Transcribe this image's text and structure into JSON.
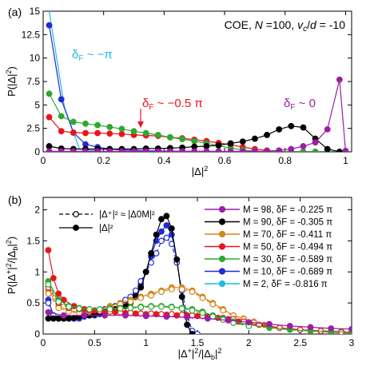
{
  "chart_data": [
    {
      "type": "line",
      "panel_label": "(a)",
      "info_text": "COE, N =100,  vc/d = -10",
      "xlabel": "|Δ|²",
      "ylabel": "P(|Δ|²)",
      "xlim": [
        0,
        1.02
      ],
      "ylim": [
        0,
        15
      ],
      "xticks": [
        0,
        0.2,
        0.4,
        0.6,
        0.8,
        1
      ],
      "xtick_labels": [
        "0",
        "0.2",
        "0.4",
        "0.6",
        "0.8",
        "1"
      ],
      "yticks": [
        0,
        2.5,
        5,
        7.5,
        10,
        12.5,
        15
      ],
      "ytick_labels": [
        "0",
        "2.5",
        "5",
        "7.5",
        "10",
        "12.5",
        "15"
      ],
      "annotations": [
        {
          "text": "δF ~ −π",
          "color": "#1fb9e6"
        },
        {
          "text": "δF ~ −0.5 π",
          "color": "#e8161c"
        },
        {
          "text": "δF ~ 0",
          "color": "#9b1ea6"
        }
      ],
      "series": [
        {
          "color": "#1fb9e6",
          "markers": false,
          "x": [
            0.02,
            0.07,
            0.12,
            0.2,
            0.3,
            0.4,
            0.5,
            0.6,
            0.7,
            0.8,
            0.9,
            1.0
          ],
          "y": [
            15,
            4.8,
            0.3,
            0.05,
            0.02,
            0.01,
            0.01,
            0.01,
            0.01,
            0.01,
            0.01,
            0.01
          ]
        },
        {
          "color": "#1f2bd6",
          "markers": true,
          "x": [
            0.02,
            0.06,
            0.1,
            0.14,
            0.18,
            0.22,
            0.26,
            0.3,
            0.34,
            0.38,
            0.42,
            0.46,
            0.5,
            0.54,
            0.58,
            0.62,
            0.66,
            0.7,
            0.74,
            0.78,
            0.82,
            0.86,
            0.9,
            0.94,
            0.98,
            1.0
          ],
          "y": [
            13.5,
            5.6,
            2.05,
            0.8,
            0.5,
            0.3,
            0.2,
            0.15,
            0.12,
            0.1,
            0.08,
            0.06,
            0.05,
            0.04,
            0.03,
            0.03,
            0.02,
            0.02,
            0.02,
            0.01,
            0.01,
            0.01,
            0.01,
            0.01,
            0.0,
            0.0
          ]
        },
        {
          "color": "#e8161c",
          "markers": true,
          "x": [
            0.02,
            0.06,
            0.1,
            0.14,
            0.18,
            0.22,
            0.26,
            0.3,
            0.34,
            0.38,
            0.42,
            0.46,
            0.5,
            0.54,
            0.58,
            0.62,
            0.66,
            0.7,
            0.74,
            0.78,
            0.82,
            0.86,
            0.9,
            0.94,
            0.98,
            1.0
          ],
          "y": [
            3.7,
            2.2,
            2.05,
            2.0,
            2.0,
            1.95,
            1.9,
            1.8,
            1.75,
            1.7,
            1.55,
            1.45,
            1.3,
            1.15,
            0.95,
            0.75,
            0.5,
            0.3,
            0.15,
            0.05,
            0.0,
            0.0,
            0.0,
            0.0,
            0.0,
            0.0
          ]
        },
        {
          "color": "#2fa82f",
          "markers": true,
          "x": [
            0.02,
            0.06,
            0.1,
            0.14,
            0.18,
            0.22,
            0.26,
            0.3,
            0.34,
            0.38,
            0.42,
            0.46,
            0.5,
            0.54,
            0.58,
            0.62,
            0.66,
            0.7,
            0.74,
            0.78,
            0.82,
            0.86,
            0.9,
            0.94,
            0.98,
            1.0
          ],
          "y": [
            6.2,
            3.8,
            3.2,
            3.0,
            2.85,
            2.65,
            2.45,
            2.2,
            2.0,
            1.8,
            1.55,
            1.35,
            1.15,
            0.9,
            0.65,
            0.4,
            0.2,
            0.08,
            0.02,
            0.0,
            0.0,
            0.0,
            0.0,
            0.0,
            0.0,
            0.0
          ]
        },
        {
          "color": "#000000",
          "markers": true,
          "x": [
            0.02,
            0.06,
            0.1,
            0.14,
            0.18,
            0.22,
            0.26,
            0.3,
            0.34,
            0.38,
            0.42,
            0.46,
            0.5,
            0.54,
            0.58,
            0.62,
            0.66,
            0.7,
            0.74,
            0.78,
            0.82,
            0.86,
            0.9,
            0.94,
            0.98,
            1.0
          ],
          "y": [
            0.6,
            0.35,
            0.3,
            0.3,
            0.3,
            0.3,
            0.3,
            0.3,
            0.35,
            0.35,
            0.4,
            0.45,
            0.55,
            0.6,
            0.7,
            0.9,
            1.1,
            1.4,
            1.8,
            2.4,
            2.75,
            2.6,
            1.4,
            0.3,
            0.0,
            0.0
          ]
        },
        {
          "color": "#9b1ea6",
          "markers": true,
          "x": [
            0.02,
            0.06,
            0.1,
            0.14,
            0.18,
            0.22,
            0.26,
            0.3,
            0.34,
            0.38,
            0.42,
            0.46,
            0.5,
            0.54,
            0.58,
            0.62,
            0.66,
            0.7,
            0.74,
            0.78,
            0.82,
            0.86,
            0.9,
            0.94,
            0.98,
            1.0
          ],
          "y": [
            0.05,
            0.05,
            0.05,
            0.05,
            0.05,
            0.05,
            0.05,
            0.05,
            0.05,
            0.05,
            0.05,
            0.05,
            0.05,
            0.05,
            0.05,
            0.05,
            0.05,
            0.06,
            0.08,
            0.15,
            0.3,
            0.6,
            1.0,
            2.4,
            7.7,
            0.1
          ]
        }
      ]
    },
    {
      "type": "line",
      "panel_label": "(b)",
      "xlabel": "|Δ⁺|²/|Δb|²",
      "ylabel": "P(|Δ⁺|²/|Δb|²)",
      "xlim": [
        0,
        3
      ],
      "ylim": [
        0,
        2.2
      ],
      "xticks": [
        0,
        0.5,
        1,
        1.5,
        2,
        2.5,
        3
      ],
      "xtick_labels": [
        "0",
        "0.5",
        "1",
        "1.5",
        "2",
        "2.5",
        "3"
      ],
      "yticks": [
        0,
        0.5,
        1,
        1.5,
        2
      ],
      "ytick_labels": [
        "0",
        "0.5",
        "1",
        "1.5",
        "2"
      ],
      "style_legend": [
        {
          "label": "|Δ⁺|² ≈ |Δ0M|²",
          "style": "dashed-open"
        },
        {
          "label": "|Δ|²",
          "style": "solid-filled"
        }
      ],
      "legend": [
        {
          "label": "M = 98, δF = -0.225 π",
          "color": "#9b1ea6"
        },
        {
          "label": "M = 90, δF = -0.305 π",
          "color": "#000000"
        },
        {
          "label": "M = 70, δF = -0.411 π",
          "color": "#d4861b"
        },
        {
          "label": "M = 50, δF = -0.494 π",
          "color": "#e8161c"
        },
        {
          "label": "M = 30, δF = -0.589 π",
          "color": "#2fa82f"
        },
        {
          "label": "M = 10, δF = -0.689 π",
          "color": "#1f2bd6"
        },
        {
          "label": "M =   2, δF = -0.816 π",
          "color": "#1fb9e6"
        }
      ],
      "series": [
        {
          "color": "#1f2bd6",
          "style": "solid-filled",
          "x": [
            0.05,
            0.1,
            0.15,
            0.2,
            0.25,
            0.3,
            0.35,
            0.4,
            0.45,
            0.5,
            0.55,
            0.6,
            0.65,
            0.7,
            0.75,
            0.8,
            0.85,
            0.9,
            0.95,
            1.0,
            1.05,
            1.1,
            1.15,
            1.2,
            1.25,
            1.3,
            1.35,
            1.4,
            1.45
          ],
          "y": [
            0.55,
            0.3,
            0.25,
            0.25,
            0.25,
            0.25,
            0.25,
            0.28,
            0.3,
            0.3,
            0.32,
            0.34,
            0.38,
            0.4,
            0.45,
            0.5,
            0.55,
            0.65,
            0.8,
            1.0,
            1.25,
            1.5,
            1.65,
            1.75,
            1.6,
            1.2,
            0.6,
            0.15,
            0.0
          ]
        },
        {
          "color": "#1f2bd6",
          "style": "dashed-open",
          "x": [
            0.05,
            0.1,
            0.15,
            0.2,
            0.25,
            0.3,
            0.35,
            0.4,
            0.45,
            0.5,
            0.55,
            0.6,
            0.65,
            0.7,
            0.75,
            0.8,
            0.85,
            0.9,
            0.95,
            1.0,
            1.05,
            1.1,
            1.15,
            1.2,
            1.25,
            1.3,
            1.35,
            1.4,
            1.45,
            1.5
          ],
          "y": [
            0.5,
            0.3,
            0.25,
            0.25,
            0.25,
            0.25,
            0.28,
            0.3,
            0.32,
            0.35,
            0.38,
            0.4,
            0.42,
            0.45,
            0.5,
            0.55,
            0.6,
            0.7,
            0.85,
            1.0,
            1.15,
            1.3,
            1.5,
            1.55,
            1.45,
            1.15,
            0.7,
            0.3,
            0.05,
            0.0
          ]
        },
        {
          "color": "#000000",
          "style": "solid-filled",
          "x": [
            0.05,
            0.1,
            0.15,
            0.2,
            0.25,
            0.3,
            0.35,
            0.4,
            0.45,
            0.5,
            0.55,
            0.6,
            0.65,
            0.7,
            0.75,
            0.8,
            0.85,
            0.9,
            0.95,
            1.0,
            1.05,
            1.1,
            1.15,
            1.2,
            1.25,
            1.3,
            1.35,
            1.4,
            1.45
          ],
          "y": [
            0.25,
            0.25,
            0.25,
            0.25,
            0.25,
            0.26,
            0.28,
            0.3,
            0.3,
            0.32,
            0.34,
            0.35,
            0.38,
            0.4,
            0.42,
            0.45,
            0.5,
            0.6,
            0.75,
            1.0,
            1.3,
            1.6,
            1.85,
            1.9,
            1.7,
            1.2,
            0.6,
            0.15,
            0.0
          ]
        },
        {
          "color": "#d4861b",
          "style": "solid-filled",
          "x": [
            0.05,
            0.15,
            0.25,
            0.35,
            0.45,
            0.55,
            0.65,
            0.75,
            0.85,
            0.95,
            1.05,
            1.15,
            1.25,
            1.35,
            1.45,
            1.55,
            1.65,
            1.75,
            1.85,
            1.95,
            2.05,
            2.15,
            2.3,
            2.5,
            2.7,
            2.9
          ],
          "y": [
            0.7,
            0.45,
            0.38,
            0.35,
            0.37,
            0.4,
            0.45,
            0.5,
            0.55,
            0.6,
            0.65,
            0.7,
            0.75,
            0.75,
            0.7,
            0.6,
            0.5,
            0.4,
            0.3,
            0.25,
            0.2,
            0.15,
            0.1,
            0.07,
            0.05,
            0.04
          ]
        },
        {
          "color": "#d4861b",
          "style": "dashed-open",
          "x": [
            0.05,
            0.15,
            0.25,
            0.35,
            0.45,
            0.55,
            0.65,
            0.75,
            0.85,
            0.95,
            1.05,
            1.15,
            1.25,
            1.35,
            1.45,
            1.55,
            1.65,
            1.75,
            1.85,
            1.95,
            2.05,
            2.2,
            2.4,
            2.6,
            2.8,
            3.0
          ],
          "y": [
            0.65,
            0.42,
            0.36,
            0.34,
            0.36,
            0.38,
            0.42,
            0.48,
            0.52,
            0.58,
            0.62,
            0.68,
            0.72,
            0.72,
            0.68,
            0.58,
            0.48,
            0.38,
            0.3,
            0.24,
            0.18,
            0.12,
            0.08,
            0.06,
            0.05,
            0.04
          ]
        },
        {
          "color": "#e8161c",
          "style": "solid-filled",
          "x": [
            0.05,
            0.1,
            0.15,
            0.2,
            0.3,
            0.4,
            0.5,
            0.6,
            0.7,
            0.8,
            0.9,
            1.0,
            1.1,
            1.2,
            1.3,
            1.4,
            1.5,
            1.6,
            1.7,
            1.8,
            1.9,
            2.0,
            2.2,
            2.4,
            2.6,
            2.8,
            3.0
          ],
          "y": [
            1.35,
            0.9,
            0.65,
            0.55,
            0.45,
            0.4,
            0.38,
            0.36,
            0.35,
            0.34,
            0.33,
            0.32,
            0.32,
            0.31,
            0.3,
            0.3,
            0.29,
            0.28,
            0.26,
            0.24,
            0.2,
            0.17,
            0.12,
            0.08,
            0.05,
            0.03,
            0.02
          ]
        },
        {
          "color": "#e8161c",
          "style": "dashed-open",
          "x": [
            0.05,
            0.15,
            0.25,
            0.35,
            0.45,
            0.55,
            0.65,
            0.75,
            0.85,
            0.95,
            1.05,
            1.15,
            1.25,
            1.35,
            1.45,
            1.55,
            1.65,
            1.75,
            1.85,
            1.95,
            2.1,
            2.3,
            2.5,
            2.7,
            2.9
          ],
          "y": [
            0.75,
            0.5,
            0.42,
            0.4,
            0.38,
            0.37,
            0.36,
            0.35,
            0.34,
            0.33,
            0.33,
            0.32,
            0.32,
            0.31,
            0.3,
            0.29,
            0.28,
            0.26,
            0.24,
            0.2,
            0.15,
            0.1,
            0.07,
            0.05,
            0.03
          ]
        },
        {
          "color": "#2fa82f",
          "style": "solid-filled",
          "x": [
            0.05,
            0.15,
            0.25,
            0.35,
            0.45,
            0.55,
            0.65,
            0.75,
            0.85,
            0.95,
            1.05,
            1.15,
            1.25,
            1.35,
            1.45,
            1.55,
            1.65,
            1.75,
            1.85,
            2.0,
            2.2,
            2.4,
            2.6,
            2.8,
            3.0
          ],
          "y": [
            0.85,
            0.55,
            0.45,
            0.42,
            0.4,
            0.4,
            0.41,
            0.42,
            0.43,
            0.44,
            0.45,
            0.45,
            0.44,
            0.42,
            0.4,
            0.36,
            0.3,
            0.25,
            0.2,
            0.15,
            0.1,
            0.07,
            0.05,
            0.04,
            0.03
          ]
        },
        {
          "color": "#2fa82f",
          "style": "dashed-open",
          "x": [
            0.05,
            0.15,
            0.25,
            0.35,
            0.45,
            0.55,
            0.65,
            0.75,
            0.85,
            0.95,
            1.05,
            1.15,
            1.25,
            1.35,
            1.45,
            1.55,
            1.65,
            1.75,
            1.85,
            2.0
          ],
          "y": [
            0.8,
            0.52,
            0.44,
            0.41,
            0.4,
            0.4,
            0.4,
            0.41,
            0.42,
            0.43,
            0.44,
            0.44,
            0.43,
            0.41,
            0.38,
            0.34,
            0.28,
            0.23,
            0.18,
            0.13
          ]
        },
        {
          "color": "#9b1ea6",
          "style": "solid-filled",
          "x": [
            0.05,
            0.2,
            0.4,
            0.6,
            0.8,
            1.0,
            1.2,
            1.4,
            1.6,
            1.8,
            2.0,
            2.2,
            2.4,
            2.6,
            2.8,
            3.0
          ],
          "y": [
            0.35,
            0.3,
            0.3,
            0.3,
            0.3,
            0.29,
            0.28,
            0.27,
            0.25,
            0.22,
            0.19,
            0.16,
            0.13,
            0.11,
            0.09,
            0.08
          ]
        }
      ]
    }
  ]
}
